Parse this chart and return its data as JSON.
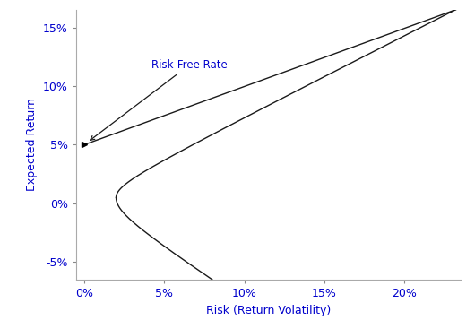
{
  "title": "",
  "xlabel": "Risk (Return Volatility)",
  "ylabel": "Expected Return",
  "text_color": "#0000cc",
  "line_color": "#1a1a1a",
  "background_color": "#ffffff",
  "xlim": [
    -0.005,
    0.235
  ],
  "ylim": [
    -0.065,
    0.165
  ],
  "xticks": [
    0.0,
    0.05,
    0.1,
    0.15,
    0.2
  ],
  "xticklabels": [
    "0%",
    "5%",
    "10%",
    "15%",
    "20%"
  ],
  "yticks": [
    -0.05,
    0.0,
    0.05,
    0.1,
    0.15
  ],
  "yticklabels": [
    "-5%",
    "0%",
    "5%",
    "10%",
    "15%"
  ],
  "risk_free_rate": 0.05,
  "annotation_text": "Risk-Free Rate",
  "mu0": 0.005,
  "sigma0": 0.02,
  "a_up": 0.5,
  "a_lo": 0.5,
  "mu_upper_max": 0.165,
  "mu_lower_min": -0.065
}
